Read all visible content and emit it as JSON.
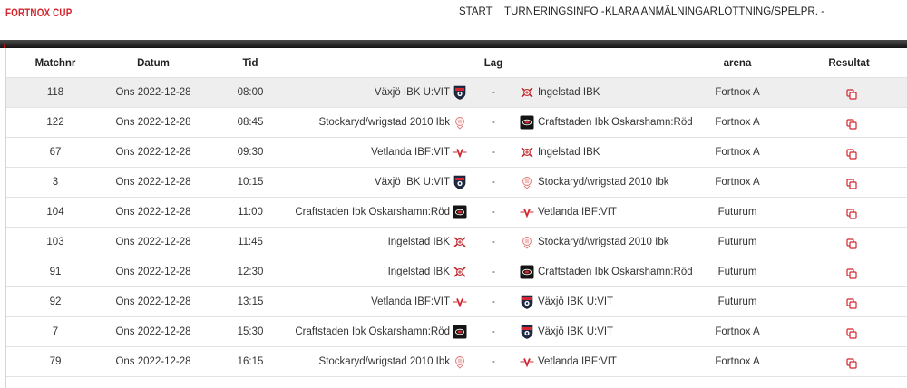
{
  "brand": "FORTNOX CUP",
  "nav": [
    {
      "label": "START"
    },
    {
      "label": "TURNERINGSINFO -"
    },
    {
      "label": "KLARA ANMÄLNINGAR"
    },
    {
      "label": "LOTTNING/SPELPR. -"
    }
  ],
  "colors": {
    "accent": "#d3262f",
    "highlight_row": "#eeeeee"
  },
  "table": {
    "headers": {
      "matchnr": "Matchnr",
      "datum": "Datum",
      "tid": "Tid",
      "lag": "Lag",
      "arena": "arena",
      "resultat": "Resultat"
    },
    "rows": [
      {
        "matchnr": "118",
        "datum": "Ons 2022-12-28",
        "tid": "08:00",
        "home": "Växjö IBK U:VIT",
        "home_logo": "vaxjo",
        "sep": "-",
        "away": "Ingelstad IBK",
        "away_logo": "ingelstad",
        "arena": "Fortnox A",
        "highlight": true
      },
      {
        "matchnr": "122",
        "datum": "Ons 2022-12-28",
        "tid": "08:45",
        "home": "Stockaryd/wrigstad 2010 Ibk",
        "home_logo": "stockaryd",
        "sep": "-",
        "away": "Craftstaden Ibk Oskarshamn:Röd",
        "away_logo": "craftstaden",
        "arena": "Fortnox A",
        "highlight": false
      },
      {
        "matchnr": "67",
        "datum": "Ons 2022-12-28",
        "tid": "09:30",
        "home": "Vetlanda IBF:VIT",
        "home_logo": "vetlanda",
        "sep": "-",
        "away": "Ingelstad IBK",
        "away_logo": "ingelstad",
        "arena": "Fortnox A",
        "highlight": false
      },
      {
        "matchnr": "3",
        "datum": "Ons 2022-12-28",
        "tid": "10:15",
        "home": "Växjö IBK U:VIT",
        "home_logo": "vaxjo",
        "sep": "-",
        "away": "Stockaryd/wrigstad 2010 Ibk",
        "away_logo": "stockaryd",
        "arena": "Fortnox A",
        "highlight": false
      },
      {
        "matchnr": "104",
        "datum": "Ons 2022-12-28",
        "tid": "11:00",
        "home": "Craftstaden Ibk Oskarshamn:Röd",
        "home_logo": "craftstaden",
        "sep": "-",
        "away": "Vetlanda IBF:VIT",
        "away_logo": "vetlanda",
        "arena": "Futurum",
        "highlight": false
      },
      {
        "matchnr": "103",
        "datum": "Ons 2022-12-28",
        "tid": "11:45",
        "home": "Ingelstad IBK",
        "home_logo": "ingelstad",
        "sep": "-",
        "away": "Stockaryd/wrigstad 2010 Ibk",
        "away_logo": "stockaryd",
        "arena": "Futurum",
        "highlight": false
      },
      {
        "matchnr": "91",
        "datum": "Ons 2022-12-28",
        "tid": "12:30",
        "home": "Ingelstad IBK",
        "home_logo": "ingelstad",
        "sep": "-",
        "away": "Craftstaden Ibk Oskarshamn:Röd",
        "away_logo": "craftstaden",
        "arena": "Futurum",
        "highlight": false
      },
      {
        "matchnr": "92",
        "datum": "Ons 2022-12-28",
        "tid": "13:15",
        "home": "Vetlanda IBF:VIT",
        "home_logo": "vetlanda",
        "sep": "-",
        "away": "Växjö IBK U:VIT",
        "away_logo": "vaxjo",
        "arena": "Futurum",
        "highlight": false
      },
      {
        "matchnr": "7",
        "datum": "Ons 2022-12-28",
        "tid": "15:30",
        "home": "Craftstaden Ibk Oskarshamn:Röd",
        "home_logo": "craftstaden",
        "sep": "-",
        "away": "Växjö IBK U:VIT",
        "away_logo": "vaxjo",
        "arena": "Fortnox A",
        "highlight": false
      },
      {
        "matchnr": "79",
        "datum": "Ons 2022-12-28",
        "tid": "16:15",
        "home": "Stockaryd/wrigstad 2010 Ibk",
        "home_logo": "stockaryd",
        "sep": "-",
        "away": "Vetlanda IBF:VIT",
        "away_logo": "vetlanda",
        "arena": "Fortnox A",
        "highlight": false
      }
    ]
  }
}
